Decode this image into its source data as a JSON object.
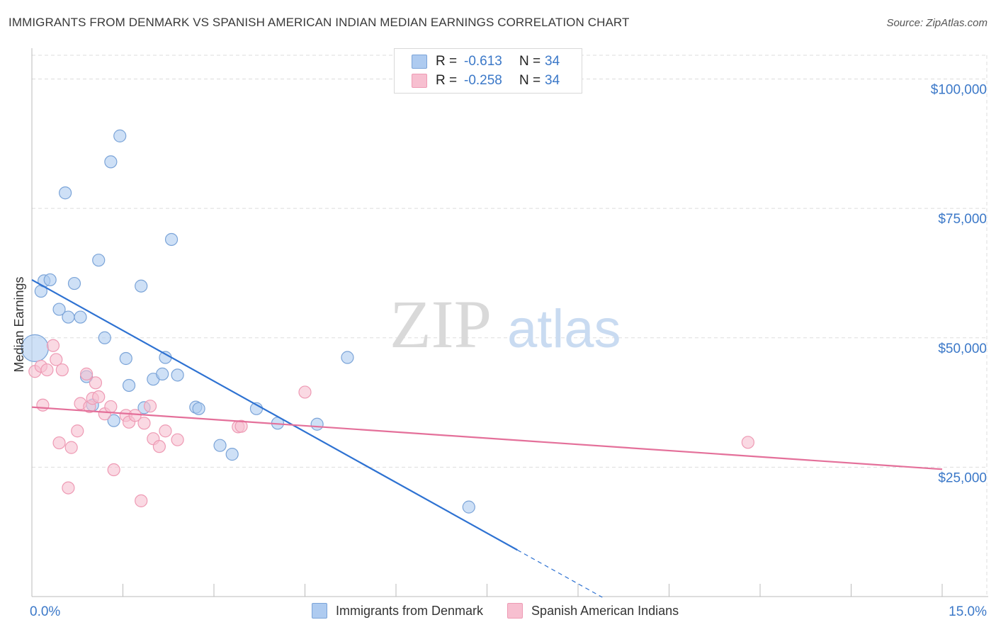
{
  "header": {
    "title": "IMMIGRANTS FROM DENMARK VS SPANISH AMERICAN INDIAN MEDIAN EARNINGS CORRELATION CHART",
    "source": "Source: ZipAtlas.com"
  },
  "watermark": {
    "zip": "ZIP",
    "atlas": "atlas"
  },
  "legend": {
    "r_label": "R =",
    "n_label": "N =",
    "series": [
      {
        "r_value": "-0.613",
        "n_value": "34"
      },
      {
        "r_value": "-0.258",
        "n_value": "34"
      }
    ]
  },
  "colors": {
    "blue_fill": "#aecbf0",
    "blue_stroke": "#7ba4d8",
    "blue_line": "#2e72d2",
    "pink_fill": "#f7bfd0",
    "pink_stroke": "#ee9ab4",
    "pink_line": "#e4709a",
    "tick_label": "#3b78c8",
    "grid": "#dddddd"
  },
  "chart_data": {
    "type": "scatter",
    "title": "IMMIGRANTS FROM DENMARK VS SPANISH AMERICAN INDIAN MEDIAN EARNINGS CORRELATION CHART",
    "xlabel": "",
    "ylabel": "Median Earnings",
    "xlim": [
      0,
      15
    ],
    "ylim": [
      0,
      105000
    ],
    "x_tick_labels": [
      "0.0%",
      "15.0%"
    ],
    "y_ticks": [
      25000,
      50000,
      75000,
      100000
    ],
    "y_tick_labels": [
      "$25,000",
      "$50,000",
      "$75,000",
      "$100,000"
    ],
    "grid": true,
    "series": [
      {
        "name": "Immigrants from Denmark",
        "color": "#aecbf0",
        "r": -0.613,
        "n": 34,
        "points": [
          [
            0.05,
            48000
          ],
          [
            0.15,
            59000
          ],
          [
            0.2,
            61000
          ],
          [
            0.3,
            61200
          ],
          [
            0.45,
            55500
          ],
          [
            0.55,
            78000
          ],
          [
            0.6,
            54000
          ],
          [
            0.7,
            60500
          ],
          [
            0.8,
            54000
          ],
          [
            0.9,
            42500
          ],
          [
            1.0,
            37000
          ],
          [
            1.1,
            65000
          ],
          [
            1.2,
            50000
          ],
          [
            1.3,
            84000
          ],
          [
            1.35,
            34000
          ],
          [
            1.45,
            89000
          ],
          [
            1.55,
            46000
          ],
          [
            1.6,
            40800
          ],
          [
            1.8,
            60000
          ],
          [
            1.85,
            36500
          ],
          [
            2.0,
            42000
          ],
          [
            2.15,
            43000
          ],
          [
            2.2,
            46200
          ],
          [
            2.3,
            69000
          ],
          [
            2.4,
            42800
          ],
          [
            2.7,
            36600
          ],
          [
            2.75,
            36300
          ],
          [
            3.1,
            29200
          ],
          [
            3.3,
            27500
          ],
          [
            3.7,
            36300
          ],
          [
            4.05,
            33500
          ],
          [
            4.7,
            33300
          ],
          [
            5.2,
            46200
          ],
          [
            7.2,
            17300
          ]
        ],
        "trend": {
          "x0": 0.0,
          "y0": 61200,
          "x1": 8.0,
          "y1": 9000,
          "dash_to_x": 9.4
        }
      },
      {
        "name": "Spanish American Indians",
        "color": "#f7bfd0",
        "r": -0.258,
        "n": 34,
        "points": [
          [
            0.05,
            43500
          ],
          [
            0.15,
            44500
          ],
          [
            0.18,
            37000
          ],
          [
            0.25,
            43800
          ],
          [
            0.35,
            48500
          ],
          [
            0.4,
            45800
          ],
          [
            0.45,
            29700
          ],
          [
            0.5,
            43800
          ],
          [
            0.6,
            21000
          ],
          [
            0.65,
            28800
          ],
          [
            0.75,
            32000
          ],
          [
            0.8,
            37300
          ],
          [
            0.9,
            43000
          ],
          [
            0.95,
            36700
          ],
          [
            1.0,
            38300
          ],
          [
            1.05,
            41300
          ],
          [
            1.1,
            38600
          ],
          [
            1.2,
            35300
          ],
          [
            1.3,
            36700
          ],
          [
            1.35,
            24500
          ],
          [
            1.55,
            35000
          ],
          [
            1.6,
            33700
          ],
          [
            1.7,
            35000
          ],
          [
            1.8,
            18500
          ],
          [
            1.85,
            33500
          ],
          [
            1.95,
            36800
          ],
          [
            2.0,
            30500
          ],
          [
            2.1,
            29000
          ],
          [
            2.2,
            32000
          ],
          [
            2.4,
            30300
          ],
          [
            3.4,
            32800
          ],
          [
            3.45,
            32900
          ],
          [
            4.5,
            39500
          ],
          [
            11.8,
            29800
          ]
        ],
        "trend": {
          "x0": 0.0,
          "y0": 36600,
          "x1": 15.0,
          "y1": 24600
        }
      }
    ]
  }
}
